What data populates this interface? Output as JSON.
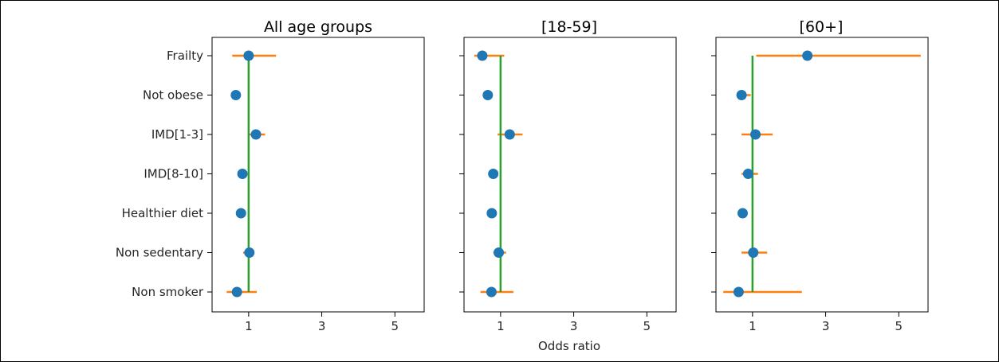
{
  "chart_data": {
    "type": "scatter",
    "variant": "forest-plot",
    "shared_categories": [
      "Frailty",
      "Not obese",
      "IMD[1-3]",
      "IMD[8-10]",
      "Healthier diet",
      "Non sedentary",
      "Non smoker"
    ],
    "xlabel": "Odds ratio",
    "xticks": [
      1,
      3,
      5
    ],
    "xlim": [
      0,
      5.8
    ],
    "reference_line_x": 1,
    "colors": {
      "point": "#1f77b4",
      "interval": "#ff7f0e",
      "reference": "#2ca02c"
    },
    "grid": false,
    "panels": [
      {
        "title": "All age groups",
        "points": [
          {
            "category": "Frailty",
            "or": 1.0,
            "low": 0.55,
            "high": 1.75
          },
          {
            "category": "Not obese",
            "or": 0.65,
            "low": 0.63,
            "high": 0.67
          },
          {
            "category": "IMD[1-3]",
            "or": 1.2,
            "low": 1.0,
            "high": 1.45
          },
          {
            "category": "IMD[8-10]",
            "or": 0.83,
            "low": 0.77,
            "high": 0.9
          },
          {
            "category": "Healthier diet",
            "or": 0.79,
            "low": 0.74,
            "high": 0.85
          },
          {
            "category": "Non sedentary",
            "or": 1.02,
            "low": 0.85,
            "high": 1.1
          },
          {
            "category": "Non smoker",
            "or": 0.68,
            "low": 0.4,
            "high": 1.22
          }
        ]
      },
      {
        "title": "[18-59]",
        "points": [
          {
            "category": "Frailty",
            "or": 0.5,
            "low": 0.28,
            "high": 1.1
          },
          {
            "category": "Not obese",
            "or": 0.65,
            "low": 0.62,
            "high": 0.68
          },
          {
            "category": "IMD[1-3]",
            "or": 1.25,
            "low": 0.92,
            "high": 1.6
          },
          {
            "category": "IMD[8-10]",
            "or": 0.8,
            "low": 0.7,
            "high": 0.9
          },
          {
            "category": "Healthier diet",
            "or": 0.76,
            "low": 0.7,
            "high": 0.82
          },
          {
            "category": "Non sedentary",
            "or": 0.95,
            "low": 0.8,
            "high": 1.15
          },
          {
            "category": "Non smoker",
            "or": 0.75,
            "low": 0.45,
            "high": 1.35
          }
        ]
      },
      {
        "title": "[60+]",
        "points": [
          {
            "category": "Frailty",
            "or": 2.5,
            "low": 1.1,
            "high": 5.6
          },
          {
            "category": "Not obese",
            "or": 0.7,
            "low": 0.6,
            "high": 0.95
          },
          {
            "category": "IMD[1-3]",
            "or": 1.08,
            "low": 0.7,
            "high": 1.55
          },
          {
            "category": "IMD[8-10]",
            "or": 0.88,
            "low": 0.7,
            "high": 1.15
          },
          {
            "category": "Healthier diet",
            "or": 0.73,
            "low": 0.65,
            "high": 0.82
          },
          {
            "category": "Non sedentary",
            "or": 1.02,
            "low": 0.7,
            "high": 1.4
          },
          {
            "category": "Non smoker",
            "or": 0.62,
            "low": 0.2,
            "high": 2.35
          }
        ]
      }
    ]
  }
}
